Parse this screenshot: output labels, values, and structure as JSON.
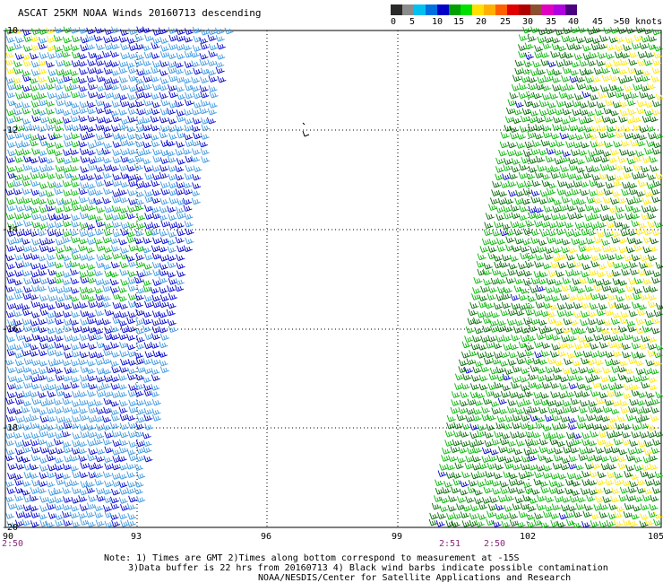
{
  "title": "ASCAT 25KM NOAA Winds 20160713 descending",
  "legend": {
    "colors": [
      "#2a2a2a",
      "#8c8c8c",
      "#00c0f0",
      "#0070e0",
      "#0000c8",
      "#00a000",
      "#00e000",
      "#ffe000",
      "#ffb000",
      "#ff6000",
      "#e00000",
      "#b00000",
      "#8c5030",
      "#e000c0",
      "#b000e0",
      "#4a0080"
    ],
    "labels": [
      "0",
      "5",
      "10",
      "15",
      "20",
      "25",
      "30",
      "35",
      "40",
      "45",
      ">50 knots"
    ]
  },
  "map": {
    "lat_labels": [
      "-10",
      "-12",
      "-14",
      "-16",
      "-18",
      "-20"
    ],
    "lon_labels": [
      "90",
      "93",
      "96",
      "99",
      "102",
      "105"
    ],
    "time_labels": [
      "2:50",
      "2:51",
      "2:50"
    ]
  },
  "notes": [
    "Note: 1) Times are GMT 2)Times along bottom correspond to measurement at -15S",
    "3)Data buffer is 22 hrs from 20160713 4) Black wind barbs indicate possible contamination",
    "NOAA/NESDIS/Center for Satellite Applications and Research"
  ],
  "wind_colors": {
    "lt_blue": "#3a96e0",
    "blue": "#0000cc",
    "green": "#00b400",
    "dk_green": "#006600",
    "yellow": "#ffe800"
  }
}
